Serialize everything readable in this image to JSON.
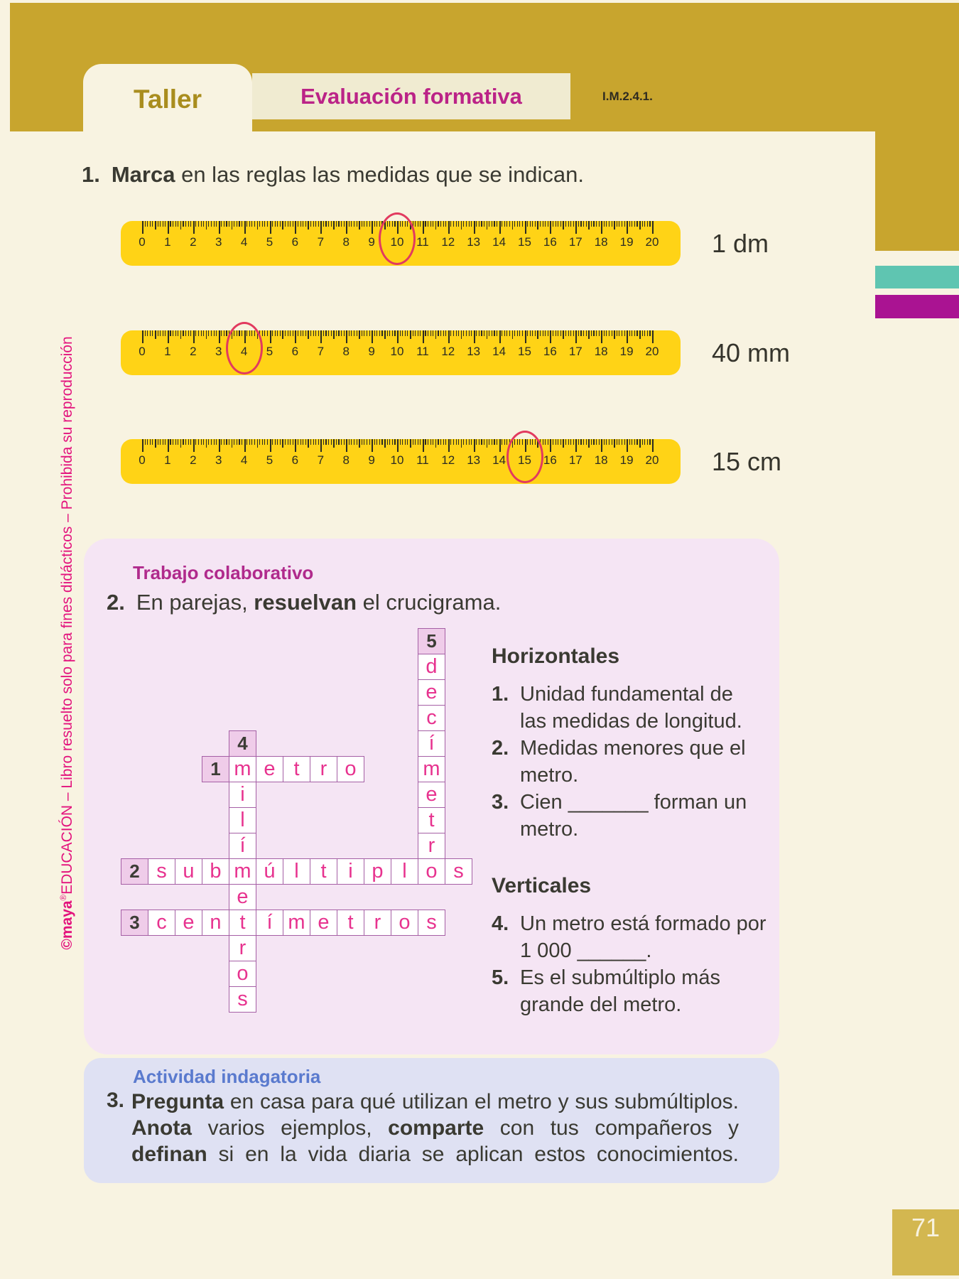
{
  "header": {
    "tab_label": "Taller",
    "banner_label": "Evaluación formativa",
    "standard_code": "I.M.2.4.1."
  },
  "sidebar": {
    "segments": [
      {
        "t": "©maya",
        "b": true
      },
      {
        "t": "®",
        "sup": true
      },
      {
        "t": "EDUCACIÓN – Libro resuelto solo para fines didácticos – Prohibida su reproducción"
      }
    ]
  },
  "items": {
    "item1": {
      "num": "1.",
      "segs": [
        {
          "t": "Marca",
          "b": true
        },
        {
          "t": " en las reglas las medidas que se indican."
        }
      ]
    },
    "item2": {
      "label": "Trabajo colaborativo",
      "num": "2.",
      "segs": [
        {
          "t": "En parejas, "
        },
        {
          "t": "resuelvan",
          "b": true
        },
        {
          "t": " el crucigrama."
        }
      ]
    },
    "item3": {
      "label": "Actividad indagatoria",
      "num": "3.",
      "lines": [
        [
          {
            "t": "Pregunta",
            "b": true
          },
          {
            "t": " en casa para qué utilizan el metro y sus submúltiplos."
          }
        ],
        [
          {
            "t": "Anota",
            "b": true
          },
          {
            "t": " varios ejemplos, "
          },
          {
            "t": "comparte",
            "b": true
          },
          {
            "t": " con tus compañeros y"
          }
        ],
        [
          {
            "t": "definan",
            "b": true
          },
          {
            "t": " si en la vida diaria se aplican estos conocimientos."
          }
        ]
      ]
    }
  },
  "rulers": [
    {
      "label": "1 dm",
      "circled_value": 10,
      "min": 0,
      "max": 20
    },
    {
      "label": "40 mm",
      "circled_value": 4,
      "min": 0,
      "max": 20
    },
    {
      "label": "15 cm",
      "circled_value": 15,
      "min": 0,
      "max": 20
    }
  ],
  "crossword": {
    "answers": {
      "1": "metro",
      "2": "submúltiplos",
      "3": "centímetros",
      "4": "milímetros",
      "5": "decímetro"
    },
    "cells": [
      {
        "r": 0,
        "c": 11,
        "t": "5",
        "n": true
      },
      {
        "r": 1,
        "c": 11,
        "t": "d"
      },
      {
        "r": 2,
        "c": 11,
        "t": "e"
      },
      {
        "r": 3,
        "c": 11,
        "t": "c"
      },
      {
        "r": 4,
        "c": 11,
        "t": "í"
      },
      {
        "r": 5,
        "c": 11,
        "t": "m"
      },
      {
        "r": 6,
        "c": 11,
        "t": "e"
      },
      {
        "r": 7,
        "c": 11,
        "t": "t"
      },
      {
        "r": 8,
        "c": 11,
        "t": "r"
      },
      {
        "r": 9,
        "c": 11,
        "t": "o"
      },
      {
        "r": 4,
        "c": 4,
        "t": "4",
        "n": true
      },
      {
        "r": 5,
        "c": 3,
        "t": "1",
        "n": true
      },
      {
        "r": 5,
        "c": 4,
        "t": "m"
      },
      {
        "r": 5,
        "c": 5,
        "t": "e"
      },
      {
        "r": 5,
        "c": 6,
        "t": "t"
      },
      {
        "r": 5,
        "c": 7,
        "t": "r"
      },
      {
        "r": 5,
        "c": 8,
        "t": "o"
      },
      {
        "r": 6,
        "c": 4,
        "t": "i"
      },
      {
        "r": 7,
        "c": 4,
        "t": "l"
      },
      {
        "r": 8,
        "c": 4,
        "t": "í"
      },
      {
        "r": 9,
        "c": 0,
        "t": "2",
        "n": true
      },
      {
        "r": 9,
        "c": 1,
        "t": "s"
      },
      {
        "r": 9,
        "c": 2,
        "t": "u"
      },
      {
        "r": 9,
        "c": 3,
        "t": "b"
      },
      {
        "r": 9,
        "c": 4,
        "t": "m"
      },
      {
        "r": 9,
        "c": 5,
        "t": "ú"
      },
      {
        "r": 9,
        "c": 6,
        "t": "l"
      },
      {
        "r": 9,
        "c": 7,
        "t": "t"
      },
      {
        "r": 9,
        "c": 8,
        "t": "i"
      },
      {
        "r": 9,
        "c": 9,
        "t": "p"
      },
      {
        "r": 9,
        "c": 10,
        "t": "l"
      },
      {
        "r": 9,
        "c": 12,
        "t": "s"
      },
      {
        "r": 10,
        "c": 4,
        "t": "e"
      },
      {
        "r": 11,
        "c": 0,
        "t": "3",
        "n": true
      },
      {
        "r": 11,
        "c": 1,
        "t": "c"
      },
      {
        "r": 11,
        "c": 2,
        "t": "e"
      },
      {
        "r": 11,
        "c": 3,
        "t": "n"
      },
      {
        "r": 11,
        "c": 4,
        "t": "t"
      },
      {
        "r": 11,
        "c": 5,
        "t": "í"
      },
      {
        "r": 11,
        "c": 6,
        "t": "m"
      },
      {
        "r": 11,
        "c": 7,
        "t": "e"
      },
      {
        "r": 11,
        "c": 8,
        "t": "t"
      },
      {
        "r": 11,
        "c": 9,
        "t": "r"
      },
      {
        "r": 11,
        "c": 10,
        "t": "o"
      },
      {
        "r": 11,
        "c": 11,
        "t": "s"
      },
      {
        "r": 12,
        "c": 4,
        "t": "r"
      },
      {
        "r": 13,
        "c": 4,
        "t": "o"
      },
      {
        "r": 14,
        "c": 4,
        "t": "s"
      }
    ]
  },
  "clues": {
    "horizontales": {
      "title": "Horizontales",
      "items": [
        {
          "num": "1.",
          "lines": [
            "Unidad fundamental de",
            "las medidas de longitud."
          ]
        },
        {
          "num": "2.",
          "lines": [
            "Medidas menores que el",
            "metro."
          ]
        },
        {
          "num": "3.",
          "lines": [
            "Cien _______ forman un",
            "metro."
          ]
        }
      ]
    },
    "verticales": {
      "title": "Verticales",
      "items": [
        {
          "num": "4.",
          "lines": [
            "Un metro está formado por",
            "1 000 ______."
          ]
        },
        {
          "num": "5.",
          "lines": [
            "Es el submúltiplo más",
            "grande del metro."
          ]
        }
      ]
    }
  },
  "page_number": "71",
  "colors": {
    "gold": "#c8a52e",
    "ruler_yellow": "#ffd316",
    "page_cream": "#f8f3e1",
    "banner_cream": "#f0ebd1",
    "taller_text": "#a98d1e",
    "banner_text": "#bb2387",
    "magenta_heading": "#b02a8c",
    "crossword_letter": "#e7338f",
    "crossword_border": "#a55fa5",
    "number_cell_bg": "#efcce9",
    "pink_box": "#f5e5f4",
    "blue_box": "#dfe1f3",
    "blue_heading": "#5a7ace",
    "sidebar_pink": "#e3137d",
    "circle_red": "#e23a5f",
    "teal_bar": "#5fc5b1",
    "magenta_bar": "#aa1392",
    "page_square_gold": "#d3b750",
    "text_dark": "#3a3a32"
  }
}
